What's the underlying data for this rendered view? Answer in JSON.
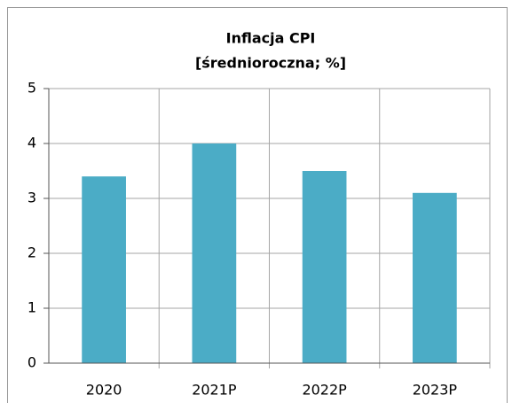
{
  "chart_data": {
    "type": "bar",
    "title": "Inflacja CPI",
    "subtitle": "[średnioroczna; %]",
    "categories": [
      "2020",
      "2021P",
      "2022P",
      "2023P"
    ],
    "values": [
      3.4,
      4.0,
      3.5,
      3.1
    ],
    "color": "#4bacc6",
    "ylim": [
      0,
      5
    ],
    "yticks": [
      0,
      1,
      2,
      3,
      4,
      5
    ],
    "grid": true
  }
}
